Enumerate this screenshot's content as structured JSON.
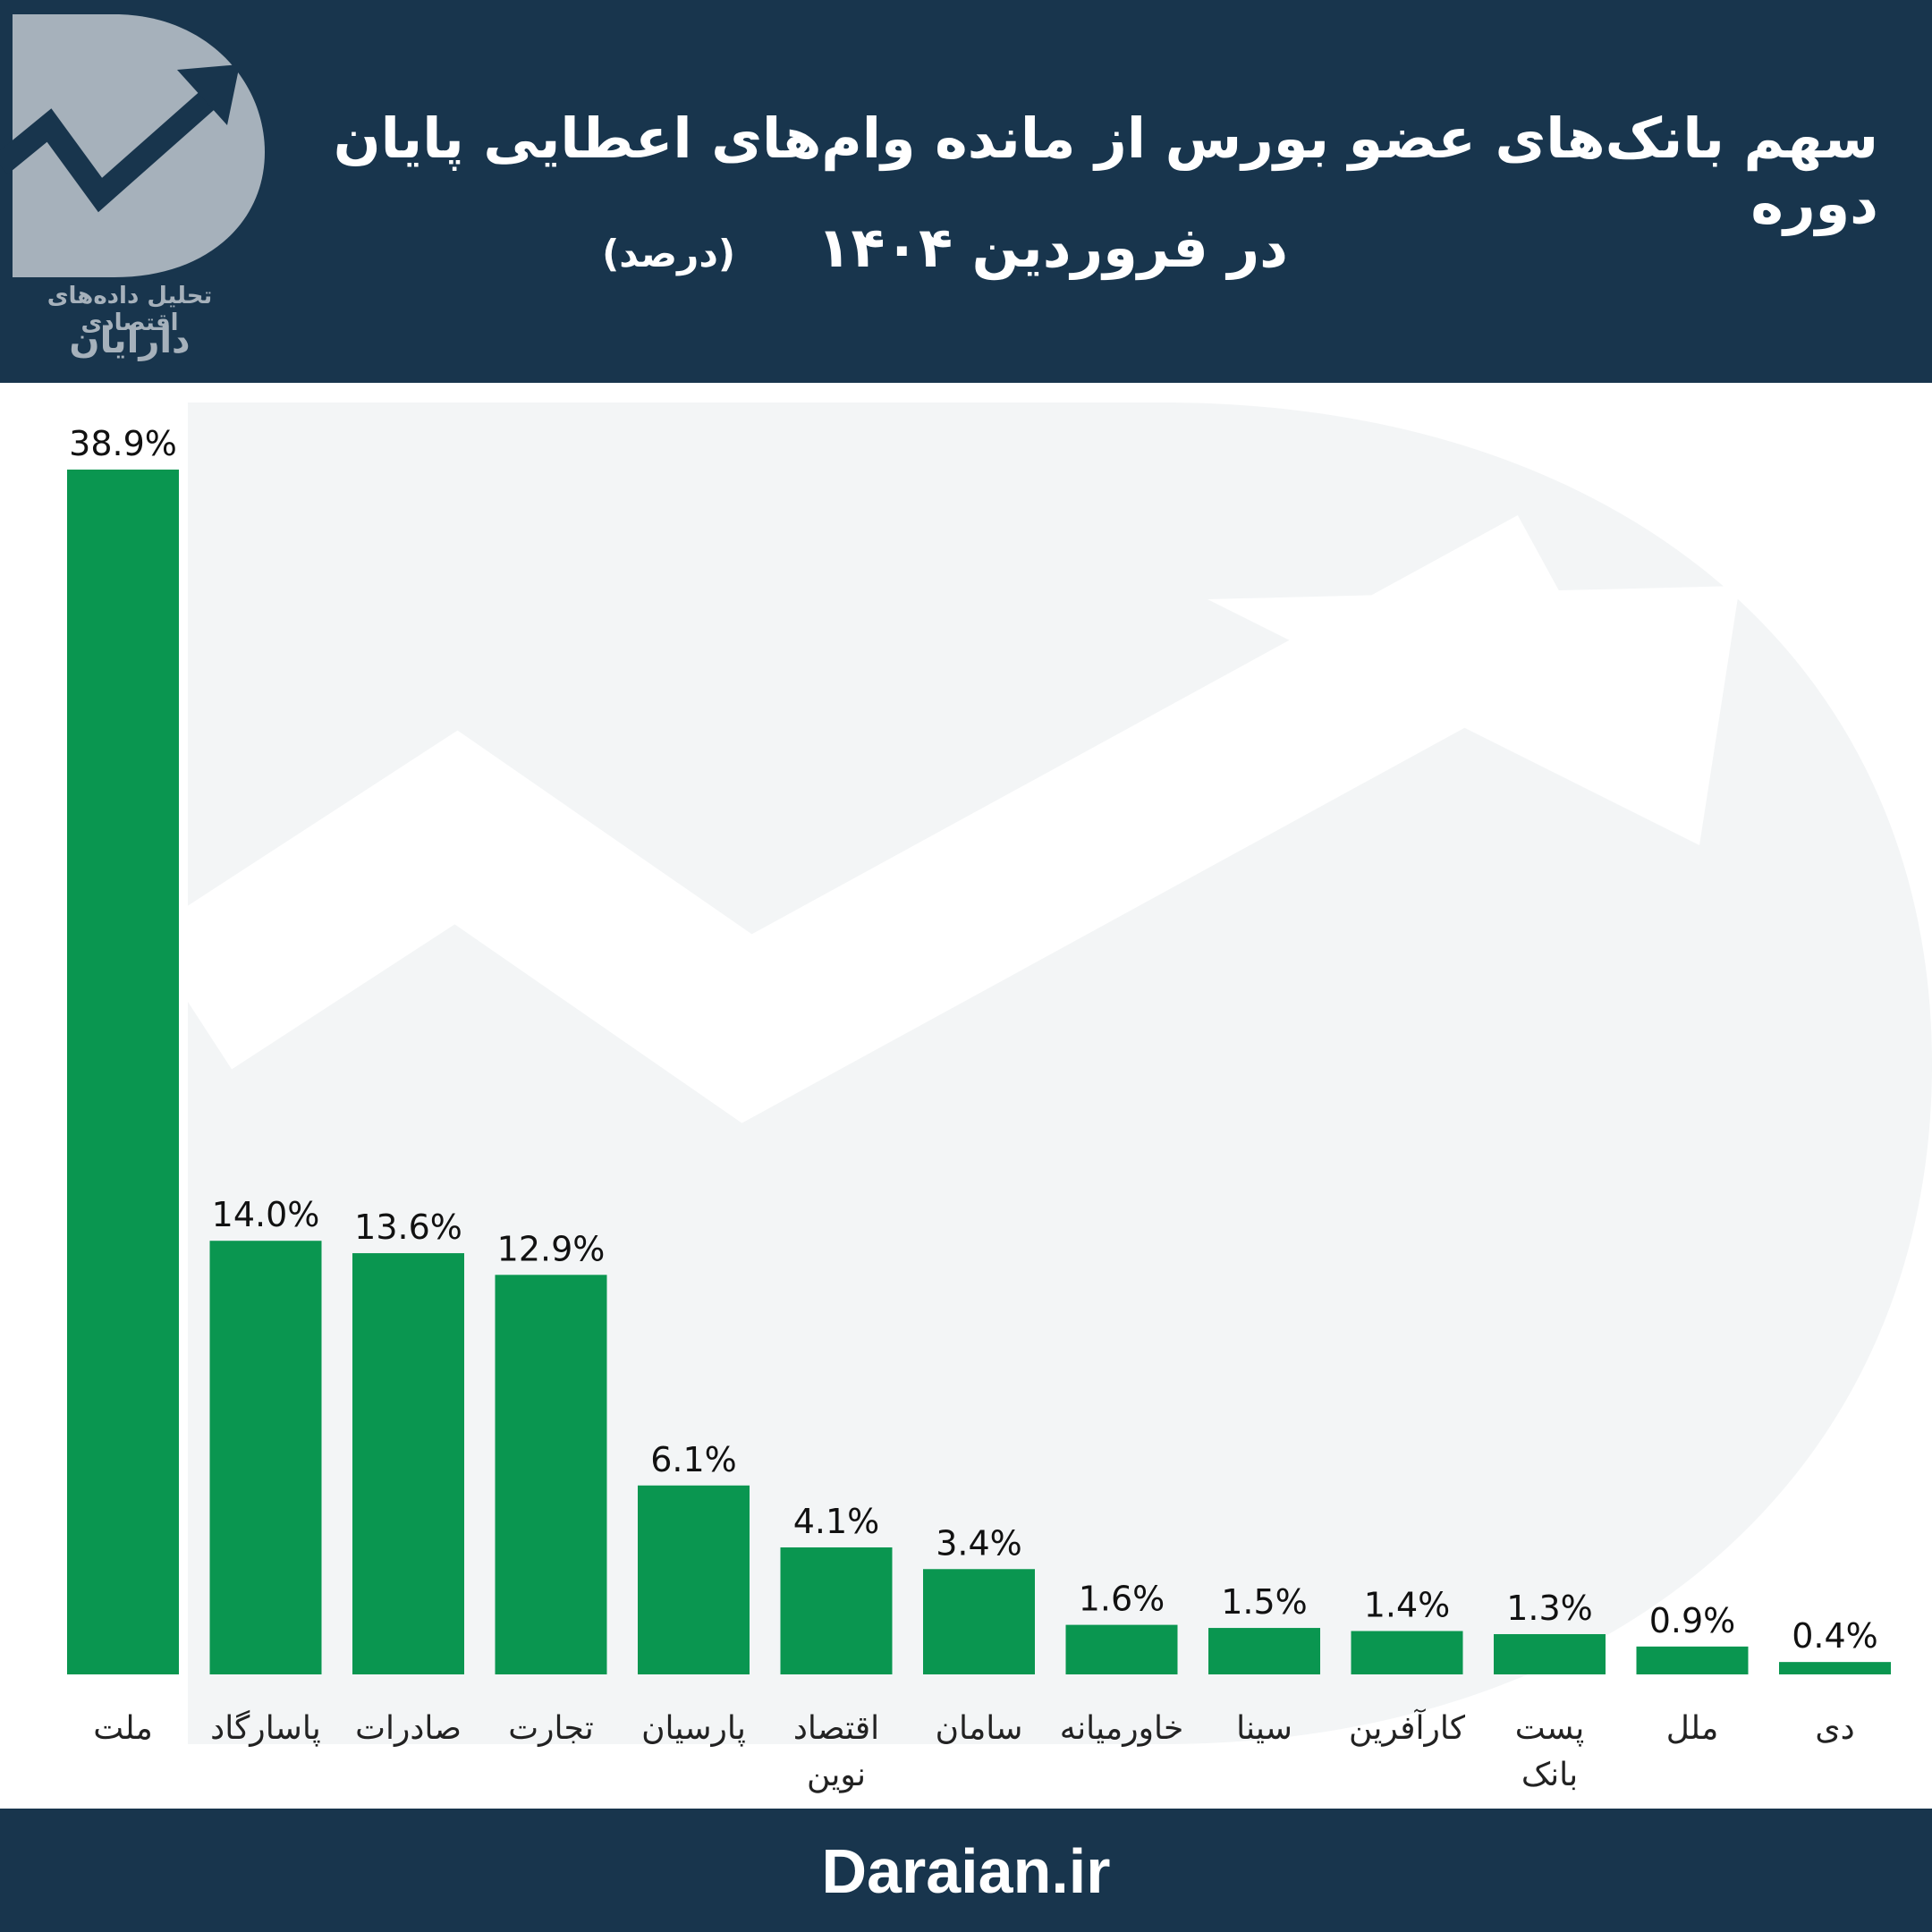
{
  "header": {
    "title_line1": "سهم بانک‌های عضو بورس از مانده وام‌های اعطایی پایان دوره",
    "title_line2": "در فروردین ۱۴۰۴",
    "unit": "(درصد)",
    "logo_subtitle": "تحلیل داده‌های اقتصادی",
    "logo_name": "دارایان"
  },
  "footer": {
    "site": "Daraian.ir"
  },
  "colors": {
    "bar": "#0a9650",
    "navy": "#18354d",
    "logo_gray": "#a6b1bb"
  },
  "chart_data": {
    "type": "bar",
    "title": "سهم بانک‌های عضو بورس از مانده وام‌های اعطایی پایان دوره در فروردین ۱۴۰۴",
    "unit": "(درصد)",
    "categories": [
      "ملت",
      "پاسارگاد",
      "صادرات",
      "تجارت",
      "پارسیان",
      "اقتصاد نوین",
      "سامان",
      "خاورمیانه",
      "سینا",
      "کارآفرین",
      "پست بانک",
      "ملل",
      "دی"
    ],
    "values": [
      38.9,
      14.0,
      13.6,
      12.9,
      6.1,
      4.1,
      3.4,
      1.6,
      1.5,
      1.4,
      1.3,
      0.9,
      0.4
    ],
    "value_labels": [
      "38.9%",
      "14.0%",
      "13.6%",
      "12.9%",
      "6.1%",
      "4.1%",
      "3.4%",
      "1.6%",
      "1.5%",
      "1.4%",
      "1.3%",
      "0.9%",
      "0.4%"
    ],
    "xlabel": "",
    "ylabel": "",
    "ylim": [
      0,
      38.9
    ],
    "grid": false,
    "legend": "none"
  }
}
